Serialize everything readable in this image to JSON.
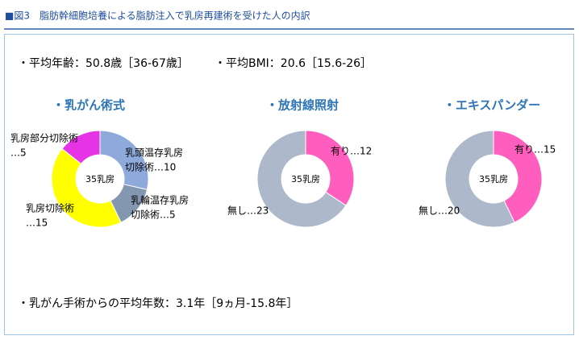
{
  "header": {
    "title": "■図3　脂肪幹細胞培養による脂肪注入で乳房再建術を受けた人の内訳"
  },
  "stats": {
    "age": "・平均年齢：50.8歳［36-67歳］",
    "bmi": "・平均BMI：20.6［15.6-26］",
    "years": "・乳がん手術からの平均年数：3.1年［9ヵ月-15.8年］"
  },
  "chart_data": [
    {
      "type": "pie",
      "title": "・乳がん術式",
      "center_label": "35乳房",
      "values": [
        10,
        5,
        15,
        5
      ],
      "colors": [
        "#8eaadb",
        "#8497b0",
        "#ffff00",
        "#e633e6"
      ],
      "value_labels": [
        [
          "乳頭温存乳房",
          "切除術…10"
        ],
        [
          "乳輪温存乳房",
          "切除術…5"
        ],
        [
          "乳房切除術",
          "…15"
        ],
        [
          "乳房部分切除術",
          "…5"
        ]
      ]
    },
    {
      "type": "pie",
      "title": "・放射線照射",
      "center_label": "35乳房",
      "values": [
        12,
        23
      ],
      "colors": [
        "#ff5ebf",
        "#adb9ca"
      ],
      "value_labels": [
        [
          "有り…12"
        ],
        [
          "無し…23"
        ]
      ]
    },
    {
      "type": "pie",
      "title": "・エキスパンダー",
      "center_label": "35乳房",
      "values": [
        15,
        20
      ],
      "colors": [
        "#ff5ebf",
        "#adb9ca"
      ],
      "value_labels": [
        [
          "有り…15"
        ],
        [
          "無し…20"
        ]
      ]
    }
  ]
}
